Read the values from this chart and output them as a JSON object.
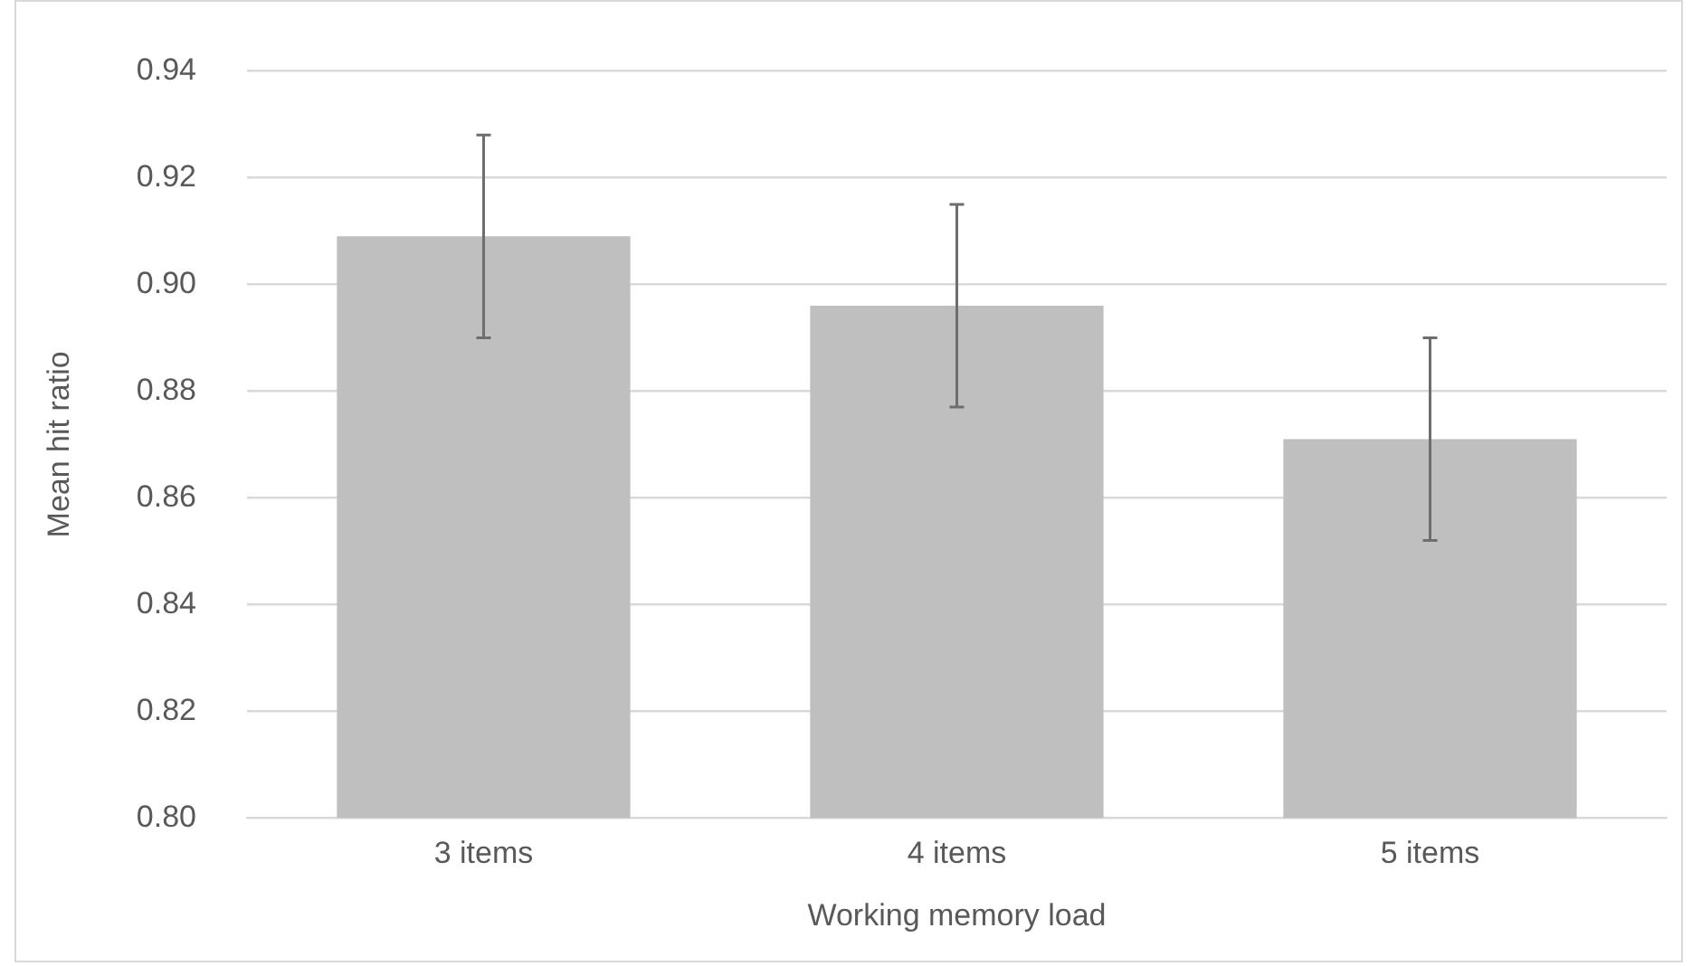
{
  "chart_data": {
    "type": "bar",
    "xlabel": "Working memory load",
    "ylabel": "Mean hit ratio",
    "categories": [
      "3 items",
      "4 items",
      "5 items"
    ],
    "values": [
      0.909,
      0.896,
      0.871
    ],
    "errors": [
      0.019,
      0.019,
      0.019
    ],
    "color": "#bfbfbf",
    "ylim": [
      0.8,
      0.94
    ],
    "yticks": [
      {
        "value": 0.8,
        "label": "0.80"
      },
      {
        "value": 0.82,
        "label": "0.82"
      },
      {
        "value": 0.84,
        "label": "0.84"
      },
      {
        "value": 0.86,
        "label": "0.86"
      },
      {
        "value": 0.88,
        "label": "0.88"
      },
      {
        "value": 0.9,
        "label": "0.90"
      },
      {
        "value": 0.92,
        "label": "0.92"
      },
      {
        "value": 0.94,
        "label": "0.94"
      }
    ],
    "grid": "y",
    "legend": false
  }
}
